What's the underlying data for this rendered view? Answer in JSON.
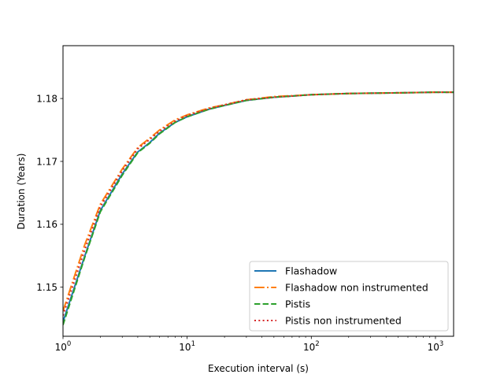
{
  "chart_data": {
    "type": "line",
    "title": "",
    "xlabel": "Execution interval (s)",
    "ylabel": "Duration (Years)",
    "xscale": "log",
    "xlim": [
      1,
      1400
    ],
    "ylim": [
      1.1422,
      1.1884
    ],
    "grid": false,
    "legend_position": "lower-right",
    "x_ticks": [
      {
        "value": 1,
        "base": "10",
        "exp": "0"
      },
      {
        "value": 10,
        "base": "10",
        "exp": "1"
      },
      {
        "value": 100,
        "base": "10",
        "exp": "2"
      },
      {
        "value": 1000,
        "base": "10",
        "exp": "3"
      }
    ],
    "y_ticks": [
      {
        "value": 1.15,
        "label": "1.15"
      },
      {
        "value": 1.16,
        "label": "1.16"
      },
      {
        "value": 1.17,
        "label": "1.17"
      },
      {
        "value": 1.18,
        "label": "1.18"
      }
    ],
    "series": [
      {
        "name": "Flashadow",
        "color": "#1f77b4",
        "style": "solid",
        "x": [
          1,
          1.5,
          2,
          3,
          4,
          5,
          6,
          8,
          10,
          15,
          20,
          30,
          50,
          100,
          200,
          500,
          1000,
          1400
        ],
        "y": [
          1.1445,
          1.155,
          1.1622,
          1.168,
          1.1715,
          1.173,
          1.1745,
          1.1762,
          1.1771,
          1.1783,
          1.1789,
          1.1797,
          1.1802,
          1.1806,
          1.1808,
          1.1809,
          1.181,
          1.181
        ]
      },
      {
        "name": "Flashadow non instrumented",
        "color": "#ff7f0e",
        "style": "dashdot",
        "x": [
          1,
          1.5,
          2,
          3,
          4,
          5,
          6,
          8,
          10,
          15,
          20,
          30,
          50,
          100,
          200,
          500,
          1000,
          1400
        ],
        "y": [
          1.1462,
          1.1568,
          1.1632,
          1.1688,
          1.1722,
          1.1737,
          1.175,
          1.1766,
          1.1774,
          1.1785,
          1.179,
          1.1798,
          1.1803,
          1.1806,
          1.1808,
          1.1809,
          1.181,
          1.181
        ]
      },
      {
        "name": "Pistis",
        "color": "#2ca02c",
        "style": "dashed",
        "x": [
          1,
          1.5,
          2,
          3,
          4,
          5,
          6,
          8,
          10,
          15,
          20,
          30,
          50,
          100,
          200,
          500,
          1000,
          1400
        ],
        "y": [
          1.144,
          1.1548,
          1.162,
          1.1678,
          1.1714,
          1.1729,
          1.1744,
          1.1762,
          1.1771,
          1.1783,
          1.1789,
          1.1797,
          1.1802,
          1.1806,
          1.1808,
          1.1809,
          1.181,
          1.181
        ]
      },
      {
        "name": "Pistis non instrumented",
        "color": "#d62728",
        "style": "dotted",
        "x": [
          1,
          1.5,
          2,
          3,
          4,
          5,
          6,
          8,
          10,
          15,
          20,
          30,
          50,
          100,
          200,
          500,
          1000,
          1400
        ],
        "y": [
          1.1455,
          1.156,
          1.1628,
          1.1685,
          1.172,
          1.1735,
          1.1748,
          1.1764,
          1.1773,
          1.1784,
          1.179,
          1.1798,
          1.1802,
          1.1806,
          1.1808,
          1.1809,
          1.181,
          1.181
        ]
      }
    ]
  }
}
